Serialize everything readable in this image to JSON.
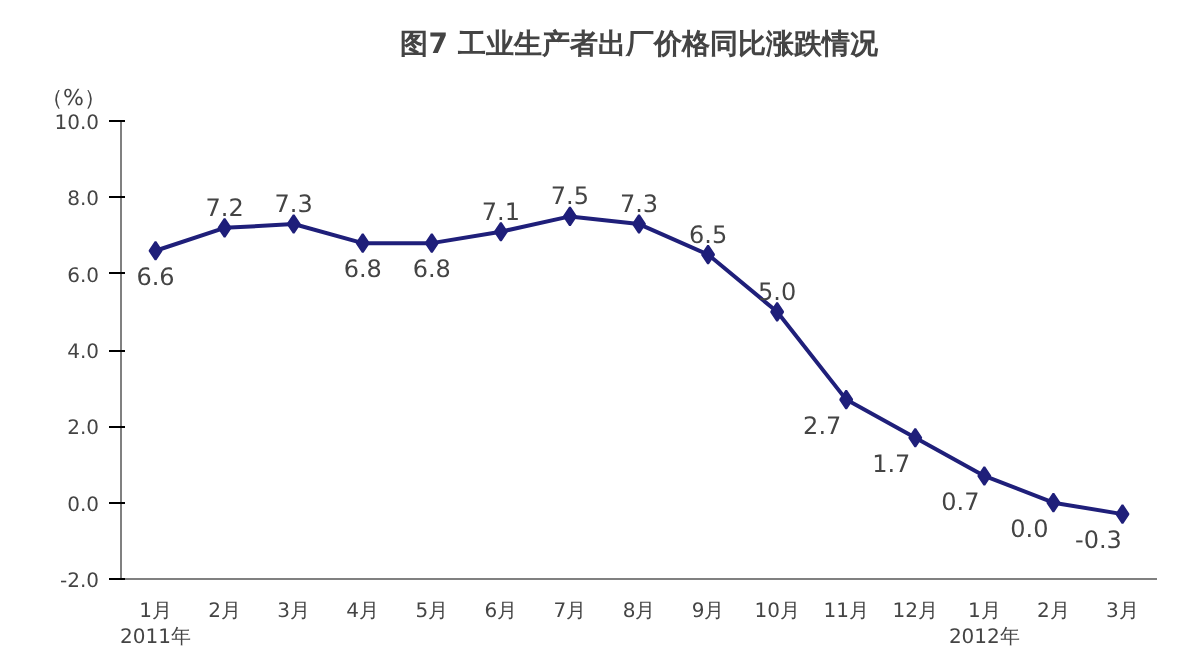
{
  "chart_data": {
    "type": "line",
    "title": "图7 工业生产者出厂价格同比涨跌情况",
    "ylabel": "（%）",
    "categories": [
      "1月\n2011年",
      "2月",
      "3月",
      "4月",
      "5月",
      "6月",
      "7月",
      "8月",
      "9月",
      "10月",
      "11月",
      "12月",
      "1月\n2012年",
      "2月",
      "3月"
    ],
    "series": [
      {
        "color": "#1f1f7a",
        "values": [
          6.6,
          7.2,
          7.3,
          6.8,
          6.8,
          7.1,
          7.5,
          7.3,
          6.5,
          5.0,
          2.7,
          1.7,
          0.7,
          0.0,
          -0.3
        ],
        "value_labels": [
          "6.6",
          "7.2",
          "7.3",
          "6.8",
          "6.8",
          "7.1",
          "7.5",
          "7.3",
          "6.5",
          "5.0",
          "2.7",
          "1.7",
          "0.7",
          "0.0",
          "-0.3"
        ]
      }
    ],
    "ylim": [
      -2,
      10
    ],
    "yticks": [
      {
        "value": -2,
        "label": "-2.0"
      },
      {
        "value": 0,
        "label": "0.0"
      },
      {
        "value": 2,
        "label": "2.0"
      },
      {
        "value": 4,
        "label": "4.0"
      },
      {
        "value": 6,
        "label": "6.0"
      },
      {
        "value": 8,
        "label": "8.0"
      },
      {
        "value": 10,
        "label": "10.0"
      }
    ],
    "grid": false,
    "marker": "diamond",
    "line_style": "solid"
  }
}
